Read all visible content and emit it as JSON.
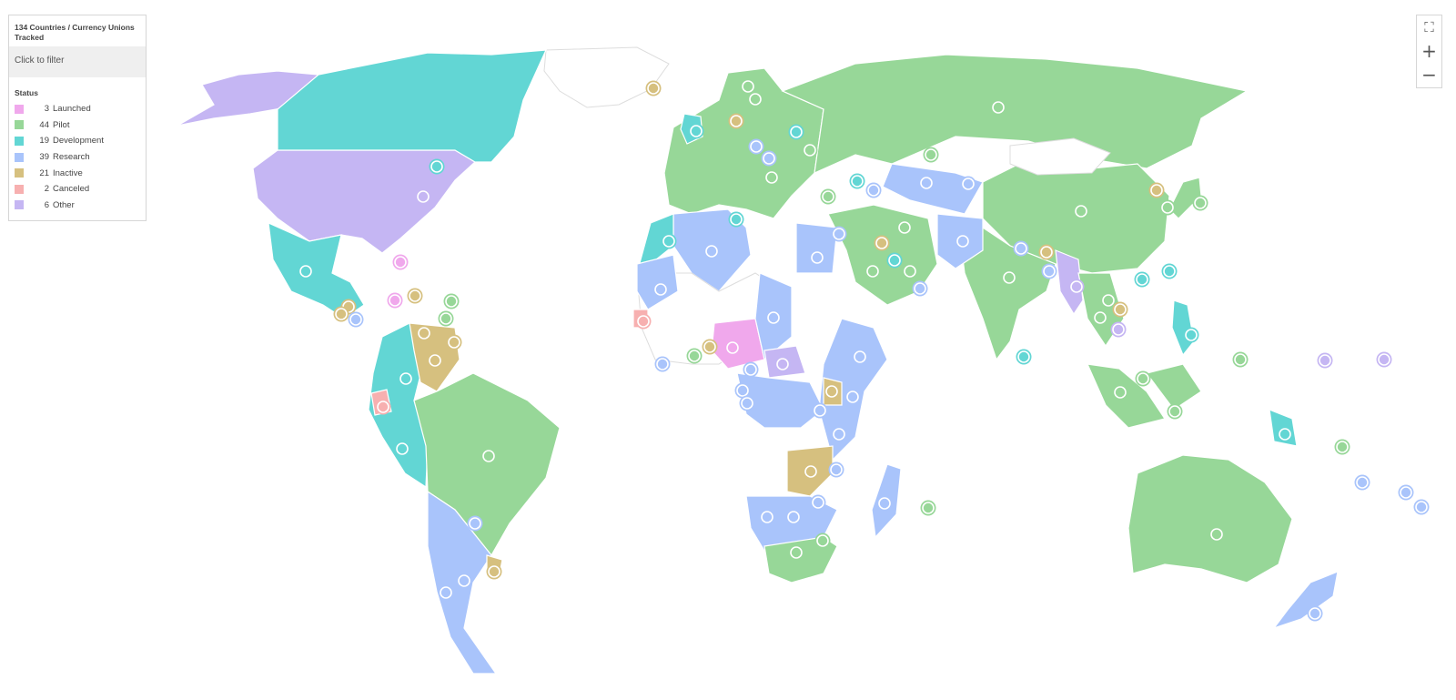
{
  "legend": {
    "title": "134 Countries / Currency Unions Tracked",
    "filter_label": "Click to filter",
    "status_label": "Status",
    "items": [
      {
        "count": "3",
        "label": "Launched",
        "color": "#f0a8ec"
      },
      {
        "count": "44",
        "label": "Pilot",
        "color": "#97d798"
      },
      {
        "count": "19",
        "label": "Development",
        "color": "#62d6d4"
      },
      {
        "count": "39",
        "label": "Research",
        "color": "#a9c4fb"
      },
      {
        "count": "21",
        "label": "Inactive",
        "color": "#d6c07f"
      },
      {
        "count": "2",
        "label": "Canceled",
        "color": "#f7b0b0"
      },
      {
        "count": "6",
        "label": "Other",
        "color": "#c5b6f3"
      }
    ]
  },
  "controls": {
    "fullscreen": "⛶",
    "zoom_in": "+",
    "zoom_out": "−"
  },
  "map": {
    "untracked_color": "#ffffff",
    "border_color": "#dddddd"
  }
}
